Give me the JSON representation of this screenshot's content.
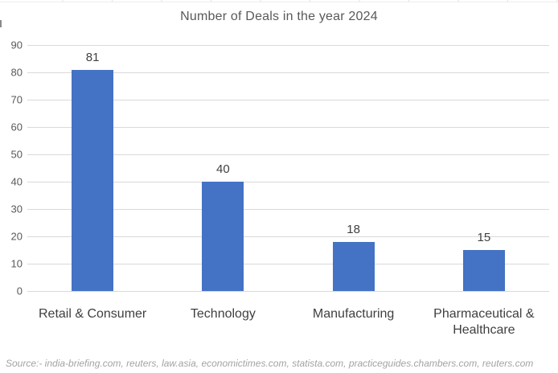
{
  "chart_data": {
    "type": "bar",
    "title": "Number of Deals in the year 2024",
    "categories": [
      "Retail & Consumer",
      "Technology",
      "Manufacturing",
      "Pharmaceutical & Healthcare"
    ],
    "values": [
      81,
      40,
      18,
      15
    ],
    "data_labels": [
      "81",
      "40",
      "18",
      "15"
    ],
    "xlabel": "",
    "ylabel": "",
    "ylim": [
      0,
      90
    ],
    "ytick_step": 10,
    "yticks": [
      "90",
      "80",
      "70",
      "60",
      "50",
      "40",
      "30",
      "20",
      "10",
      "0"
    ],
    "grid": true,
    "legend_position": "none",
    "bar_color": "#4472c4"
  },
  "colors": {
    "bar": "#4472c4",
    "gridline": "#d9d9d9",
    "title_text": "#595959",
    "axis_tick_text": "#595959",
    "category_text": "#3f3f3f",
    "value_label_text": "#404040",
    "source_text": "#a3a3a3"
  },
  "source_note": "Source:- india-briefing.com, reuters, law.asia, economictimes.com, statista.com, practiceguides.chambers.com, reuters.com"
}
